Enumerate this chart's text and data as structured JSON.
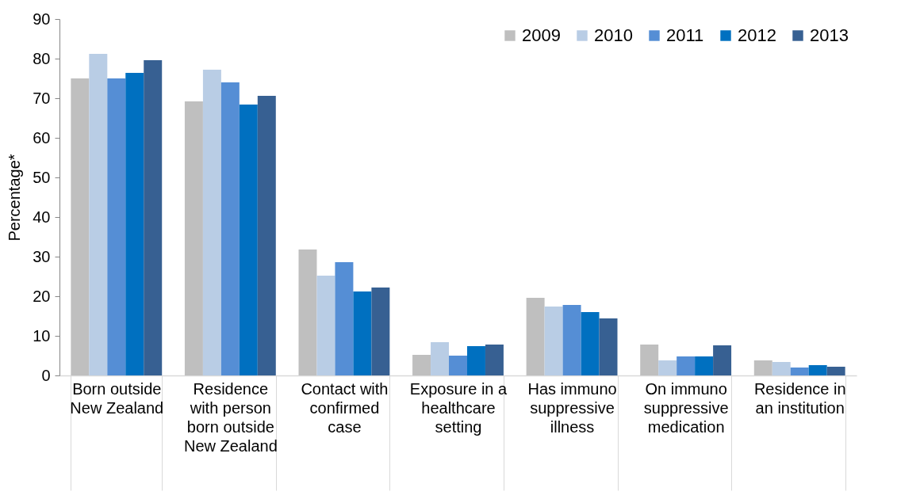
{
  "chart_data": {
    "type": "bar",
    "ylabel": "Percentage*",
    "categories": [
      "Born outside New Zealand",
      "Residence with person born outside New Zealand",
      "Contact with confirmed case",
      "Exposure in a healthcare setting",
      "Has immuno suppressive illness",
      "On immuno suppressive medication",
      "Residence in an institution"
    ],
    "series": [
      {
        "name": "2009",
        "color": "#bfbfbf",
        "values": [
          75,
          69.2,
          31.8,
          5.2,
          19.6,
          7.8,
          3.8
        ]
      },
      {
        "name": "2010",
        "color": "#b9cde5",
        "values": [
          81.2,
          77.2,
          25.2,
          8.4,
          17.4,
          3.8,
          3.4
        ]
      },
      {
        "name": "2011",
        "color": "#558ed5",
        "values": [
          75,
          74,
          28.6,
          5,
          17.8,
          4.8,
          2
        ]
      },
      {
        "name": "2012",
        "color": "#0070c0",
        "values": [
          76.4,
          68.4,
          21.2,
          7.4,
          16,
          4.8,
          2.6
        ]
      },
      {
        "name": "2013",
        "color": "#376092",
        "values": [
          79.6,
          70.6,
          22.2,
          7.8,
          14.4,
          7.6,
          2.2
        ]
      }
    ],
    "ylim": [
      0,
      90
    ],
    "yticks": [
      0,
      10,
      20,
      30,
      40,
      50,
      60,
      70,
      80,
      90
    ],
    "grid": false,
    "legend": "top right"
  }
}
